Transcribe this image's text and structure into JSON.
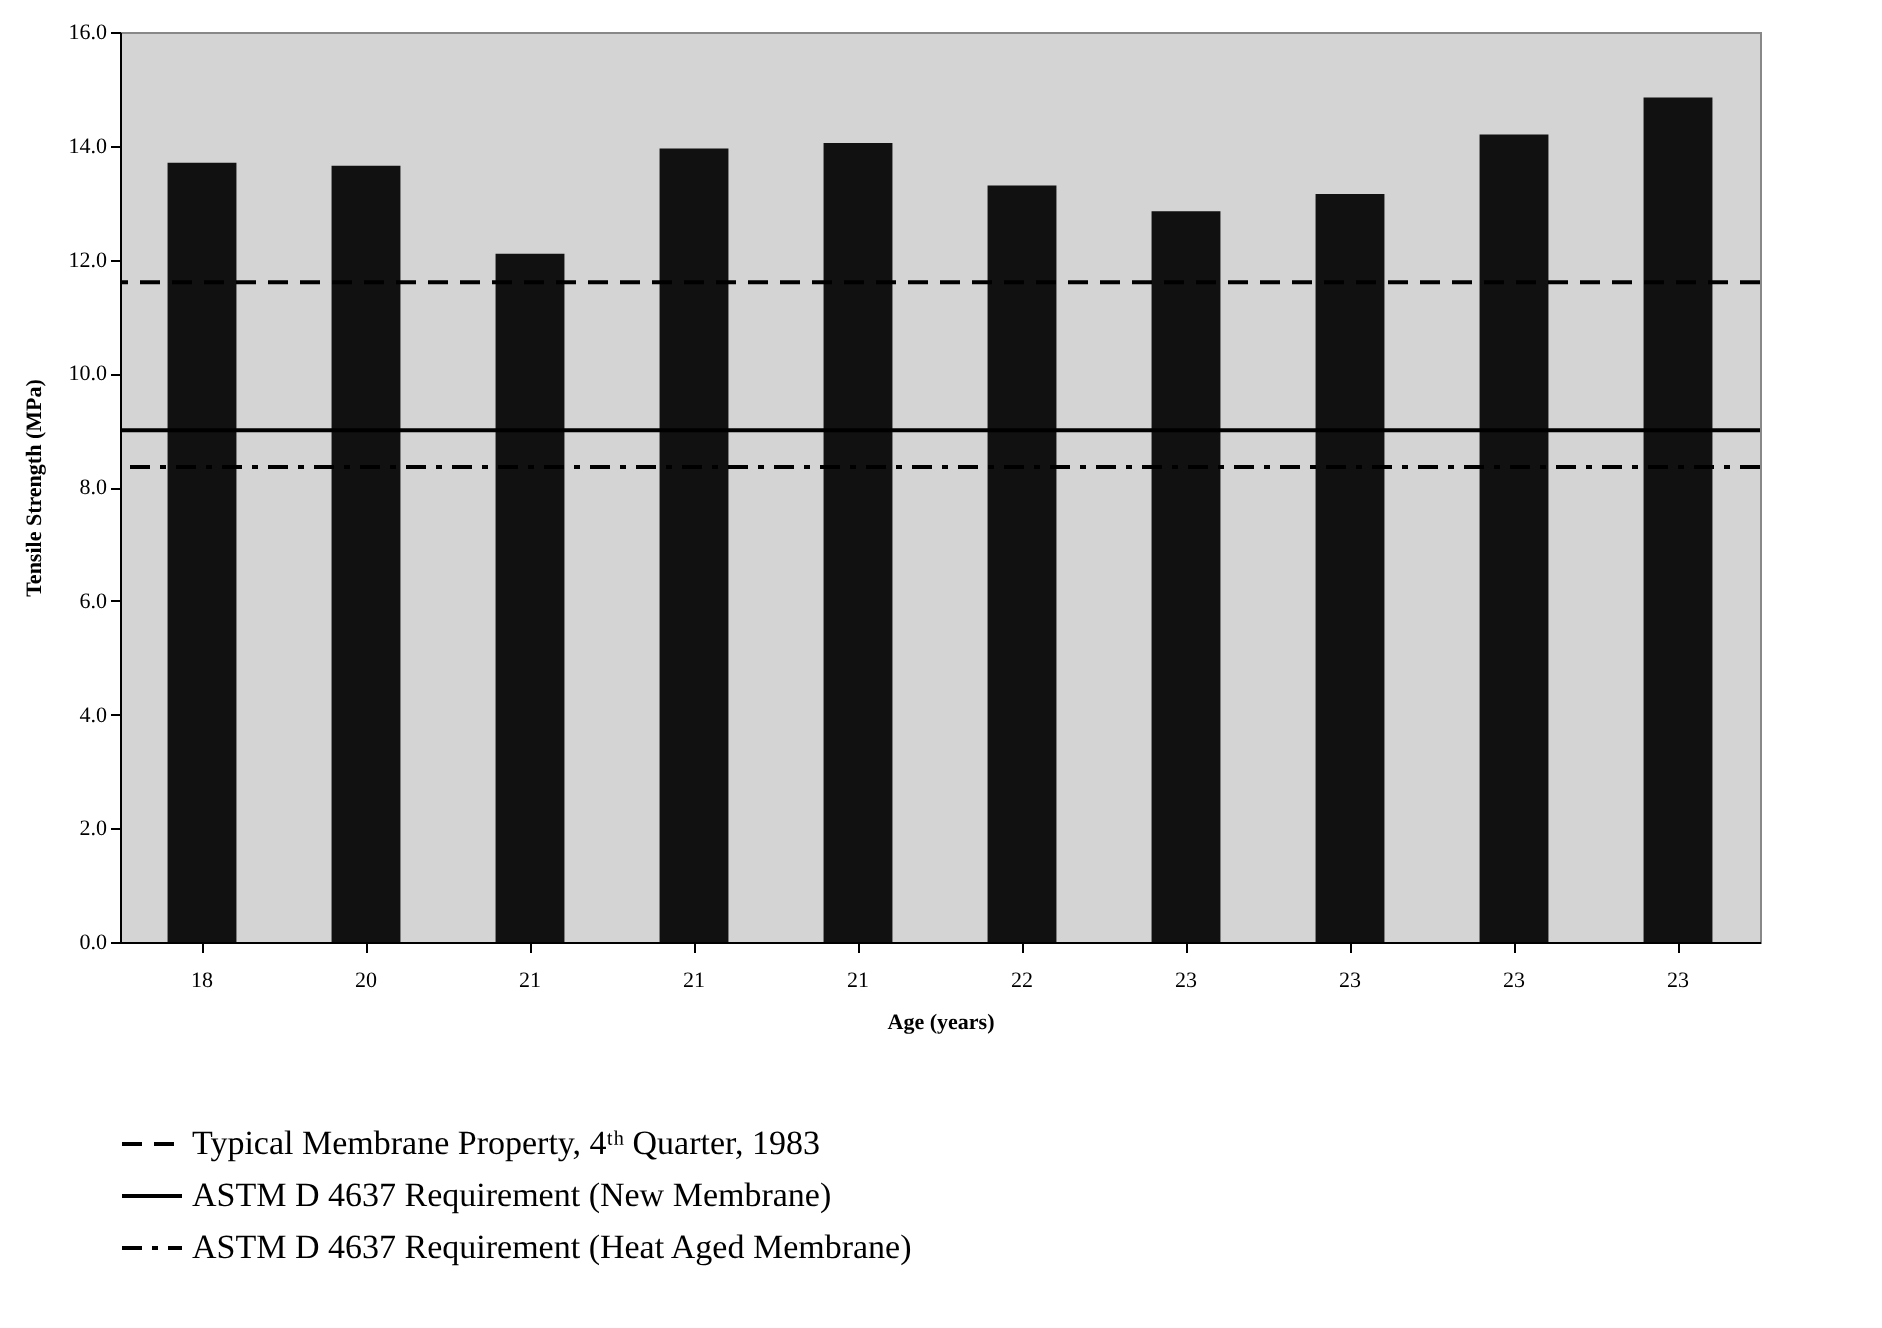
{
  "chart_data": {
    "type": "bar",
    "xlabel": "Age (years)",
    "ylabel": "Tensile Strength (MPa)",
    "categories": [
      "18",
      "20",
      "21",
      "21",
      "21",
      "22",
      "23",
      "23",
      "23",
      "23"
    ],
    "values": [
      13.7,
      13.65,
      12.1,
      13.95,
      14.05,
      13.3,
      12.85,
      13.15,
      14.2,
      14.85
    ],
    "color": "#111111",
    "ylim": [
      0,
      16
    ],
    "yticks": [
      {
        "value": 0,
        "label": "0.0"
      },
      {
        "value": 2,
        "label": "2.0"
      },
      {
        "value": 4,
        "label": "4.0"
      },
      {
        "value": 6,
        "label": "6.0"
      },
      {
        "value": 8,
        "label": "8.0"
      },
      {
        "value": 10,
        "label": "10.0"
      },
      {
        "value": 12,
        "label": "12.0"
      },
      {
        "value": 14,
        "label": "14.0"
      },
      {
        "value": 16,
        "label": "16.0"
      }
    ],
    "grid": false,
    "legend": "bottom",
    "ref_lines": [
      {
        "axis": "y",
        "value": 11.6,
        "label": "Typical Membrane Property, 4ᵗʰ Quarter, 1983",
        "line_style": "dashed",
        "color": "#000000"
      },
      {
        "axis": "y",
        "value": 9.0,
        "label": "ASTM D 4637 Requirement (New Membrane)",
        "line_style": "solid",
        "color": "#000000"
      },
      {
        "axis": "y",
        "value": 8.35,
        "label": "ASTM D 4637 Requirement (Heat Aged Membrane)",
        "line_style": "dashdot",
        "color": "#000000"
      }
    ]
  }
}
